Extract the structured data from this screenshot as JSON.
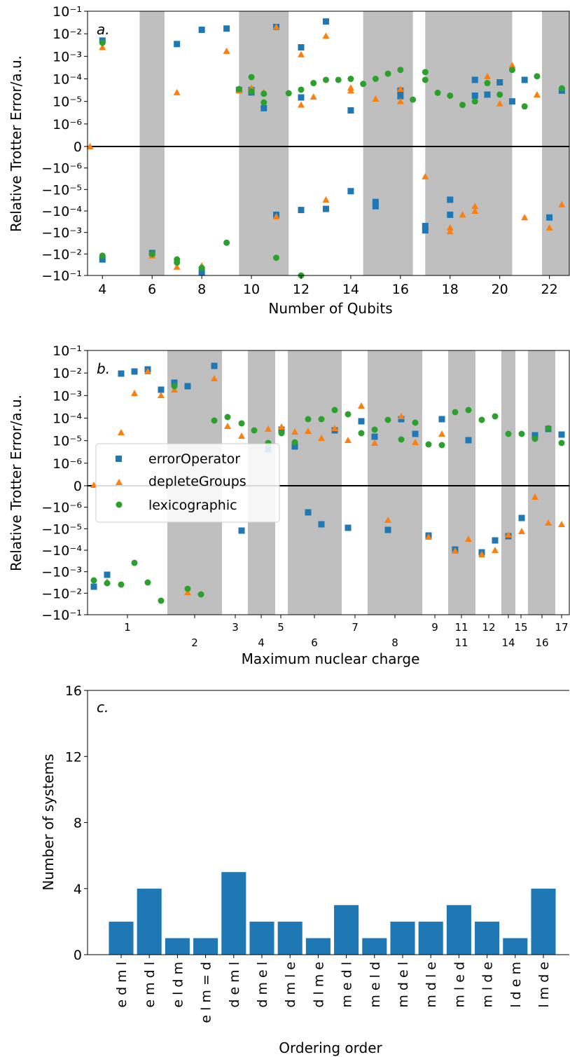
{
  "colors": {
    "errorOperator": "#1f77b4",
    "depleteGroups": "#ff7f0e",
    "lexicographic": "#2ca02c",
    "shade": "#bfbfbf",
    "bar": "#1f77b4"
  },
  "symlog_ticks": [
    "10⁻¹",
    "10⁻²",
    "10⁻³",
    "10⁻⁴",
    "10⁻⁵",
    "10⁻⁶",
    "0",
    "−10⁻⁶",
    "−10⁻⁵",
    "−10⁻⁴",
    "−10⁻³",
    "−10⁻²",
    "−10⁻¹"
  ],
  "chart_data": [
    {
      "type": "scatter",
      "panel_label": "a.",
      "xlabel": "Number of Qubits",
      "ylabel": "Relative Trotter Error/a.u.",
      "y_scale": "symlog",
      "y_linthresh": 1e-06,
      "ylim": [
        -0.1,
        0.1
      ],
      "xlim": [
        3.4,
        22.8
      ],
      "x_ticks": [
        "4",
        "6",
        "8",
        "10",
        "12",
        "14",
        "16",
        "18",
        "20",
        "22"
      ],
      "shaded_x_ranges": [
        [
          5.5,
          6.5
        ],
        [
          9.5,
          11.5
        ],
        [
          14.5,
          16.5
        ],
        [
          17.0,
          20.5
        ],
        [
          21.7,
          22.8
        ]
      ],
      "series": [
        {
          "name": "errorOperator",
          "marker": "square",
          "points": [
            [
              4,
              0.005
            ],
            [
              4,
              -0.018
            ],
            [
              6,
              -0.009
            ],
            [
              7,
              0.0035
            ],
            [
              8,
              0.015
            ],
            [
              8,
              -0.07
            ],
            [
              9,
              0.017
            ],
            [
              9.5,
              3.2e-05
            ],
            [
              10,
              3.2e-05
            ],
            [
              10,
              2.5e-05
            ],
            [
              10.5,
              5e-06
            ],
            [
              11,
              0.02
            ],
            [
              11,
              -0.00015
            ],
            [
              12,
              1.5e-05
            ],
            [
              12,
              0.0025
            ],
            [
              12,
              -9e-05
            ],
            [
              13,
              0.035
            ],
            [
              13,
              -8e-05
            ],
            [
              14,
              -1.2e-05
            ],
            [
              14,
              4e-06
            ],
            [
              15,
              -3.8e-05
            ],
            [
              15,
              -6e-05
            ],
            [
              16,
              3e-05
            ],
            [
              16,
              1.7e-05
            ],
            [
              17,
              -0.0008
            ],
            [
              17,
              -0.0005
            ],
            [
              18,
              -0.00015
            ],
            [
              18,
              -3e-05
            ],
            [
              19,
              1.8e-05
            ],
            [
              19,
              9e-05
            ],
            [
              19.5,
              2e-05
            ],
            [
              20,
              7e-05
            ],
            [
              20.5,
              1e-05
            ],
            [
              21,
              9e-05
            ],
            [
              22,
              -0.0002
            ],
            [
              22.5,
              3e-05
            ]
          ]
        },
        {
          "name": "depleteGroups",
          "marker": "triangle",
          "points": [
            [
              3.5,
              0
            ],
            [
              4,
              0.0025
            ],
            [
              6,
              -0.012
            ],
            [
              7,
              -0.04
            ],
            [
              7,
              2.5e-05
            ],
            [
              8,
              -0.035
            ],
            [
              9,
              0.0017
            ],
            [
              9.5,
              3e-05
            ],
            [
              10,
              4e-05
            ],
            [
              10,
              3.8e-05
            ],
            [
              10.5,
              2.5e-05
            ],
            [
              11,
              0.02
            ],
            [
              11,
              -0.00018
            ],
            [
              12,
              7e-06
            ],
            [
              12,
              0.0012
            ],
            [
              12.5,
              1.6e-05
            ],
            [
              13,
              0.008
            ],
            [
              13,
              -3e-05
            ],
            [
              14,
              3e-05
            ],
            [
              14,
              4e-05
            ],
            [
              15,
              1.3e-05
            ],
            [
              16,
              1e-05
            ],
            [
              16,
              3.5e-05
            ],
            [
              17,
              -2.5e-06
            ],
            [
              18,
              -0.0009
            ],
            [
              18,
              -0.0006
            ],
            [
              18.5,
              -0.00015
            ],
            [
              19,
              -0.0001
            ],
            [
              19,
              -6e-05
            ],
            [
              19.5,
              0.00013
            ],
            [
              20,
              8e-06
            ],
            [
              20.5,
              0.0004
            ],
            [
              21,
              -0.0002
            ],
            [
              21.5,
              2e-05
            ],
            [
              22,
              -0.0006
            ],
            [
              22.5,
              -5e-05
            ]
          ]
        },
        {
          "name": "lexicographic",
          "marker": "circle",
          "points": [
            [
              4,
              0.004
            ],
            [
              4,
              -0.012
            ],
            [
              6,
              -0.01
            ],
            [
              7,
              -0.025
            ],
            [
              7,
              -0.018
            ],
            [
              8,
              -0.045
            ],
            [
              9,
              -0.003
            ],
            [
              9.5,
              3.5e-05
            ],
            [
              10,
              0.00012
            ],
            [
              10,
              2.8e-05
            ],
            [
              10.5,
              2.2e-05
            ],
            [
              10.5,
              9e-06
            ],
            [
              11,
              -0.015
            ],
            [
              11.5,
              2.3e-05
            ],
            [
              12,
              3.3e-05
            ],
            [
              12,
              -0.1
            ],
            [
              12.5,
              6.5e-05
            ],
            [
              13,
              9e-05
            ],
            [
              13.5,
              9e-05
            ],
            [
              14,
              0.0001
            ],
            [
              14.5,
              6e-05
            ],
            [
              15,
              0.0001
            ],
            [
              15.5,
              0.00017
            ],
            [
              16,
              0.00025
            ],
            [
              16.5,
              1.2e-05
            ],
            [
              17,
              9e-05
            ],
            [
              17,
              0.0002
            ],
            [
              17.5,
              2.4e-05
            ],
            [
              18,
              1.8e-05
            ],
            [
              18.5,
              7e-06
            ],
            [
              19,
              1e-05
            ],
            [
              19.5,
              6.5e-05
            ],
            [
              20,
              2e-05
            ],
            [
              20.5,
              0.00025
            ],
            [
              21,
              6e-06
            ],
            [
              21.5,
              0.00013
            ],
            [
              22.5,
              3.8e-05
            ]
          ]
        }
      ]
    },
    {
      "type": "scatter",
      "panel_label": "b.",
      "xlabel": "Maximum nuclear charge",
      "ylabel": "Relative Trotter Error/a.u.",
      "y_scale": "symlog",
      "y_linthresh": 1e-06,
      "ylim": [
        -0.1,
        0.1
      ],
      "x_ticks_top_row": [
        "1",
        "3",
        "5",
        "7",
        "9",
        "11",
        "12",
        "15",
        "17"
      ],
      "x_ticks_bottom_row": [
        "2",
        "4",
        "6",
        "8",
        "11",
        "14",
        "16"
      ],
      "legend": {
        "placement": "center-left",
        "entries": [
          "errorOperator",
          "depleteGroups",
          "lexicographic"
        ]
      }
    },
    {
      "type": "bar",
      "panel_label": "c.",
      "xlabel": "Ordering order",
      "ylabel": "Number of systems",
      "ylim": [
        0,
        16
      ],
      "y_ticks": [
        "0",
        "4",
        "8",
        "12",
        "16"
      ],
      "categories": [
        "e d m l",
        "e m d l",
        "e l d m",
        "e l m = d",
        "d e m l",
        "d m e l",
        "d m l e",
        "d l m e",
        "m e d l",
        "m e l d",
        "m d e l",
        "m d l e",
        "m l e d",
        "m l d e",
        "l d e m",
        "l m d e"
      ],
      "values": [
        2,
        4,
        1,
        1,
        5,
        2,
        2,
        1,
        3,
        1,
        2,
        2,
        3,
        2,
        1,
        4
      ]
    }
  ]
}
